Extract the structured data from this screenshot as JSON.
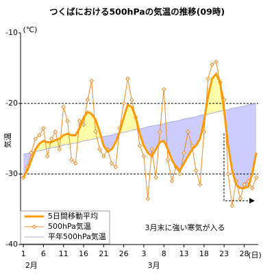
{
  "chart_data": {
    "type": "line",
    "title": "つくばにおける500hPaの気温の推移(09時)",
    "y_label": "気温",
    "y_unit": "(℃)",
    "x_unit": "(日)",
    "month_labels": [
      {
        "text": "2月",
        "x": 3
      },
      {
        "text": "3月",
        "x": 33.5
      }
    ],
    "annotation": "3月末に強い寒気が入る",
    "x": [
      1,
      2,
      3,
      4,
      5,
      6,
      7,
      8,
      9,
      10,
      11,
      12,
      13,
      14,
      15,
      16,
      17,
      18,
      19,
      20,
      21,
      22,
      23,
      24,
      25,
      26,
      27,
      28,
      29,
      30,
      31,
      32,
      33,
      34,
      35,
      36,
      37,
      38,
      39,
      40,
      41,
      42,
      43,
      44,
      45,
      46,
      47,
      48,
      49,
      50,
      51,
      52,
      53,
      54,
      55,
      56,
      57,
      58,
      59
    ],
    "series": [
      {
        "name": "5日間移動平均",
        "color": "#ff9900",
        "values": [
          -30.5,
          -29.5,
          -28,
          -26.5,
          -25.7,
          -25.3,
          -25.5,
          -25.5,
          -25.2,
          -25,
          -24.5,
          -24.3,
          -24.5,
          -24.5,
          -23.5,
          -22,
          -21.2,
          -21.5,
          -22.3,
          -24,
          -26,
          -26.8,
          -26.5,
          -25.5,
          -24,
          -22,
          -20.2,
          -20.5,
          -22,
          -24.3,
          -26,
          -27,
          -27.5,
          -26.5,
          -25.5,
          -25.3,
          -26.5,
          -28,
          -29,
          -29.5,
          -28.5,
          -27.5,
          -26.5,
          -26,
          -25,
          -22.5,
          -19,
          -16.5,
          -15.8,
          -17,
          -21,
          -26,
          -29.5,
          -31.5,
          -32,
          -32,
          -31.8,
          -30,
          -27
        ]
      },
      {
        "name": "500hPa気温",
        "color": "#ee8822",
        "values": [
          -30.5,
          -29,
          -27,
          -25,
          -24.5,
          -23.5,
          -27.5,
          -25,
          -24,
          -26.5,
          -20.5,
          -22.5,
          -28,
          -28.5,
          -22.5,
          -23,
          -19.5,
          -16.8,
          -24,
          -26.5,
          -27.5,
          -26.5,
          -28.5,
          -29,
          -23.5,
          -20,
          -16.5,
          -19.5,
          -22,
          -26,
          -27.5,
          -33.5,
          -26.5,
          -30.5,
          -24,
          -18,
          -28,
          -31,
          -29,
          -30,
          -27,
          -24,
          -26,
          -29.5,
          -31.5,
          -24,
          -16.5,
          -14.5,
          -14.1,
          -17,
          -19.5,
          -30,
          -34.5,
          -31,
          -33.5,
          -31.5,
          -31,
          -32,
          -30.5
        ]
      },
      {
        "name": "平年500hPa気温",
        "color": "#aaaadd",
        "values": [
          -27.2,
          -27.1,
          -26.9,
          -26.8,
          -26.7,
          -26.6,
          -26.4,
          -26.3,
          -26.2,
          -26.1,
          -25.9,
          -25.8,
          -25.7,
          -25.6,
          -25.5,
          -25.3,
          -25.2,
          -25.1,
          -25.0,
          -24.8,
          -24.7,
          -24.6,
          -24.5,
          -24.3,
          -24.2,
          -24.1,
          -24.0,
          -23.8,
          -23.7,
          -23.6,
          -23.5,
          -23.3,
          -23.2,
          -23.1,
          -23.0,
          -22.9,
          -22.7,
          -22.6,
          -22.5,
          -22.4,
          -22.2,
          -22.1,
          -22.0,
          -21.9,
          -21.7,
          -21.6,
          -21.5,
          -21.4,
          -21.2,
          -21.1,
          -21.0,
          -20.9,
          -20.7,
          -20.6,
          -20.5,
          -20.4,
          -20.2,
          -20.1,
          -20.0
        ]
      }
    ],
    "above_color": "#ffffaa",
    "below_color": "#ccccff",
    "xlim": [
      0.3,
      59.5
    ],
    "xticks": [
      1,
      6,
      11,
      16,
      21,
      26,
      {
        "value": 31,
        "label": "3"
      },
      {
        "value": 36,
        "label": "8"
      },
      {
        "value": 41,
        "label": "13"
      },
      {
        "value": 46,
        "label": "18"
      },
      {
        "value": 51,
        "label": "23"
      },
      {
        "value": 56,
        "label": "28"
      }
    ],
    "ylim": [
      -40,
      -10
    ],
    "yticks": [
      -10,
      -20,
      -30,
      -40
    ],
    "grid": true,
    "legend": "lower left"
  }
}
